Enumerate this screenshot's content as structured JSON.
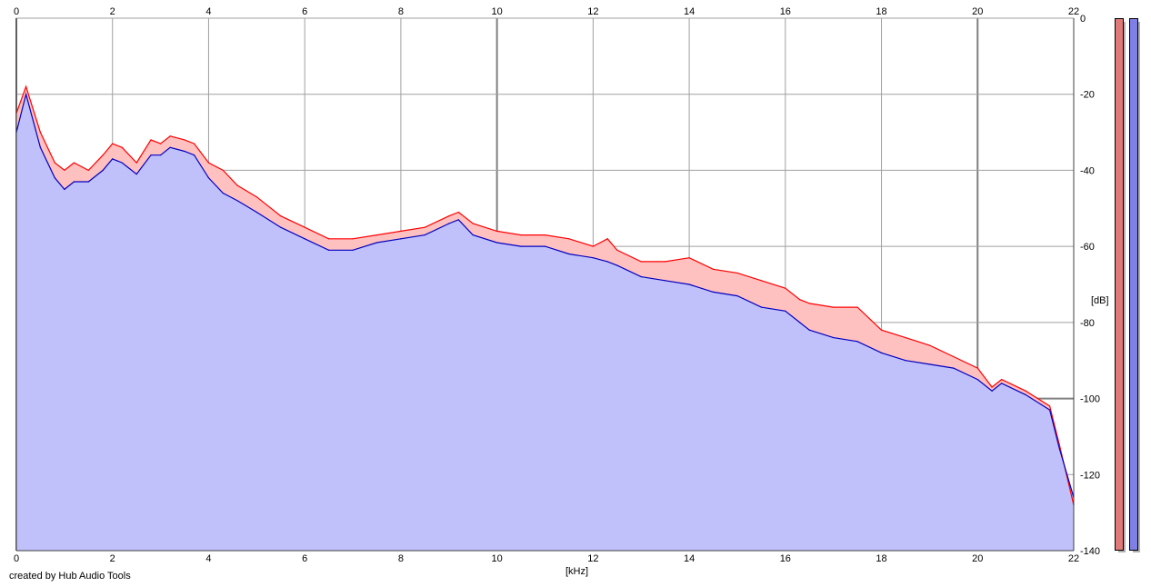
{
  "chart_data": {
    "type": "area",
    "x_unit": "kHz",
    "y_unit": "dB",
    "xlabel": "[kHz]",
    "ylabel": "[dB]",
    "xlim": [
      0,
      22
    ],
    "ylim": [
      -140,
      0
    ],
    "x_ticks": [
      0,
      2,
      4,
      6,
      8,
      10,
      12,
      14,
      16,
      18,
      20,
      22
    ],
    "y_ticks": [
      0,
      -20,
      -40,
      -60,
      -80,
      -100,
      -120,
      -140
    ],
    "grid": true,
    "x": [
      0,
      0.2,
      0.5,
      0.8,
      1,
      1.2,
      1.5,
      1.8,
      2,
      2.2,
      2.5,
      2.8,
      3,
      3.2,
      3.5,
      3.7,
      4,
      4.3,
      4.6,
      5,
      5.5,
      6,
      6.5,
      7,
      7.5,
      8,
      8.5,
      9,
      9.2,
      9.5,
      10,
      10.5,
      11,
      11.5,
      12,
      12.3,
      12.5,
      13,
      13.5,
      14,
      14.5,
      15,
      15.5,
      16,
      16.3,
      16.5,
      17,
      17.5,
      18,
      18.5,
      19,
      19.5,
      20,
      20.3,
      20.5,
      21,
      21.5,
      21.7,
      22
    ],
    "series": [
      {
        "color": "#ff0000",
        "values": [
          -25,
          -18,
          -30,
          -38,
          -40,
          -38,
          -40,
          -36,
          -33,
          -34,
          -38,
          -32,
          -33,
          -31,
          -32,
          -33,
          -38,
          -40,
          -44,
          -47,
          -52,
          -55,
          -58,
          -58,
          -57,
          -56,
          -55,
          -52,
          -51,
          -54,
          -56,
          -57,
          -57,
          -58,
          -60,
          -58,
          -61,
          -64,
          -64,
          -63,
          -66,
          -67,
          -69,
          -71,
          -74,
          -75,
          -76,
          -76,
          -82,
          -84,
          -86,
          -89,
          -92,
          -97,
          -95,
          -98,
          -102,
          -112,
          -128
        ]
      },
      {
        "color": "#0000c0",
        "values": [
          -30,
          -20,
          -34,
          -42,
          -45,
          -43,
          -43,
          -40,
          -37,
          -38,
          -41,
          -36,
          -36,
          -34,
          -35,
          -36,
          -42,
          -46,
          -48,
          -51,
          -55,
          -58,
          -61,
          -61,
          -59,
          -58,
          -57,
          -54,
          -53,
          -57,
          -59,
          -60,
          -60,
          -62,
          -63,
          -64,
          -65,
          -68,
          -69,
          -70,
          -72,
          -73,
          -76,
          -77,
          -80,
          -82,
          -84,
          -85,
          -88,
          -90,
          -91,
          -92,
          -95,
          -98,
          -96,
          -99,
          -103,
          -113,
          -126
        ]
      }
    ]
  },
  "footer": {
    "credit": "created by Hub Audio Tools"
  },
  "meters": [
    {
      "color": "#e07a7a"
    },
    {
      "color": "#7f7fe8"
    }
  ],
  "style": {
    "fill_red": "#ffc0c0",
    "fill_blue": "#c0c0fa",
    "grid_color": "#a0a0a0",
    "grid_major": "#808080"
  }
}
